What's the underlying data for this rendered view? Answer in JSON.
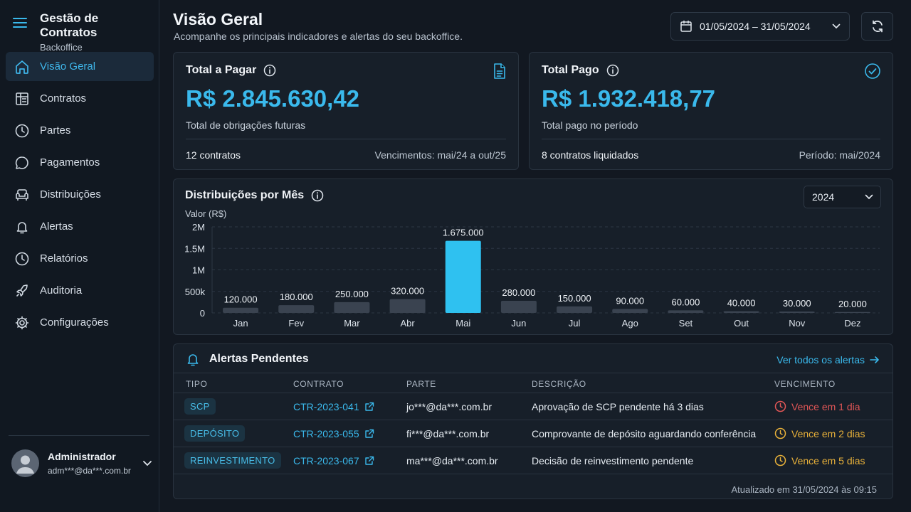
{
  "app": {
    "title": "Gestão de Contratos",
    "subtitle": "Backoffice"
  },
  "sidebar": {
    "items": [
      {
        "label": "Visão Geral",
        "icon": "home-icon",
        "active": true
      },
      {
        "label": "Contratos",
        "icon": "contracts-icon"
      },
      {
        "label": "Partes",
        "icon": "clock-icon"
      },
      {
        "label": "Pagamentos",
        "icon": "chat-icon"
      },
      {
        "label": "Distribuições",
        "icon": "couch-icon"
      },
      {
        "label": "Alertas",
        "icon": "bell-icon"
      },
      {
        "label": "Relatórios",
        "icon": "clock-icon"
      },
      {
        "label": "Auditoria",
        "icon": "rocket-icon"
      },
      {
        "label": "Configurações",
        "icon": "gear-icon"
      }
    ]
  },
  "user": {
    "name": "Administrador",
    "email": "adm***@da***.com.br"
  },
  "header": {
    "title": "Visão Geral",
    "subtitle": "Acompanhe os principais indicadores e alertas do seu backoffice.",
    "date_range": "01/05/2024 – 31/05/2024"
  },
  "kpis": [
    {
      "title": "Total a Pagar",
      "value": "R$ 2.845.630,42",
      "description": "Total de obrigações futuras",
      "left": "12 contratos",
      "right": "Vencimentos: mai/24 a out/25",
      "icon": "document-icon"
    },
    {
      "title": "Total Pago",
      "value": "R$ 1.932.418,77",
      "description": "Total pago no período",
      "left": "8 contratos liquidados",
      "right": "Período: mai/2024",
      "icon": "check-circle-icon"
    }
  ],
  "chart": {
    "title": "Distribuições por Mês",
    "year": "2024"
  },
  "chart_data": {
    "type": "bar",
    "ylabel": "Valor (R$)",
    "ylim": [
      0,
      2000000
    ],
    "yticks": [
      {
        "value": 0,
        "label": "0"
      },
      {
        "value": 500000,
        "label": "500k"
      },
      {
        "value": 1000000,
        "label": "1M"
      },
      {
        "value": 1500000,
        "label": "1.5M"
      },
      {
        "value": 2000000,
        "label": "2M"
      }
    ],
    "categories": [
      "Jan",
      "Fev",
      "Mar",
      "Abr",
      "Mai",
      "Jun",
      "Jul",
      "Ago",
      "Set",
      "Out",
      "Nov",
      "Dez"
    ],
    "values": [
      120000,
      180000,
      250000,
      320000,
      1675000,
      280000,
      150000,
      90000,
      60000,
      40000,
      30000,
      20000
    ],
    "data_labels": [
      "120.000",
      "180.000",
      "250.000",
      "320.000",
      "1.675.000",
      "280.000",
      "150.000",
      "90.000",
      "60.000",
      "40.000",
      "30.000",
      "20.000"
    ],
    "highlight": "Mai",
    "colors": {
      "bar": "#3a4350",
      "highlight": "#2fc1f0"
    },
    "grid": true
  },
  "alerts": {
    "title": "Alertas Pendentes",
    "view_all": "Ver todos os alertas",
    "columns": [
      "TIPO",
      "CONTRATO",
      "PARTE",
      "DESCRIÇÃO",
      "VENCIMENTO"
    ],
    "rows": [
      {
        "type": "SCP",
        "contract": "CTR-2023-041",
        "party": "jo***@da***.com.br",
        "description": "Aprovação de SCP pendente há 3 dias",
        "due": "Vence em 1 dia",
        "severity": "red"
      },
      {
        "type": "DEPÓSITO",
        "contract": "CTR-2023-055",
        "party": "fi***@da***.com.br",
        "description": "Comprovante de depósito aguardando conferência",
        "due": "Vence em 2 dias",
        "severity": "amber"
      },
      {
        "type": "REINVESTIMENTO",
        "contract": "CTR-2023-067",
        "party": "ma***@da***.com.br",
        "description": "Decisão de reinvestimento pendente",
        "due": "Vence em 5 dias",
        "severity": "amber"
      }
    ],
    "updated": "Atualizado em 31/05/2024 às 09:15"
  },
  "colors": {
    "accent": "#3ab9ec",
    "danger": "#e05656",
    "warning": "#e8b13a"
  }
}
